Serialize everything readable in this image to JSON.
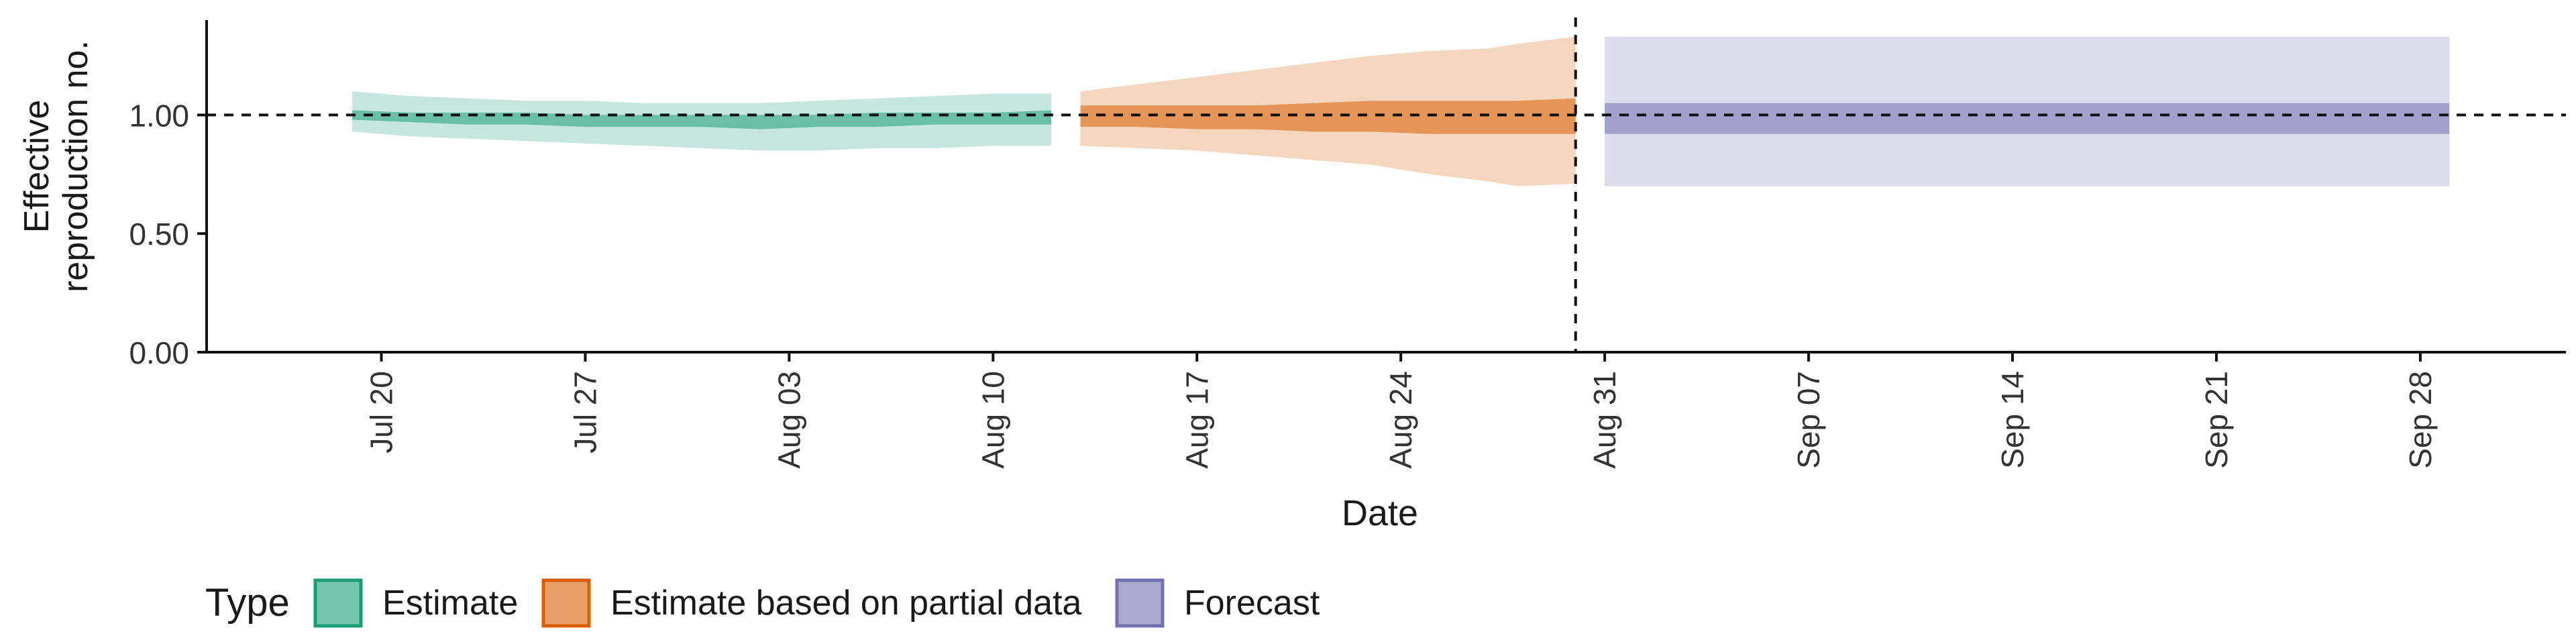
{
  "chart_data": {
    "type": "area",
    "title": "",
    "xlabel": "Date",
    "ylabel_lines": [
      "Effective",
      "reproduction no."
    ],
    "ylim": [
      0,
      1.4
    ],
    "y_ticks": [
      0.0,
      0.5,
      1.0
    ],
    "y_tick_labels": [
      "0.00",
      "0.50",
      "1.00"
    ],
    "x_range": [
      "2020-07-14",
      "2020-10-03"
    ],
    "x_ticks": [
      "2020-07-20",
      "2020-07-27",
      "2020-08-03",
      "2020-08-10",
      "2020-08-17",
      "2020-08-24",
      "2020-08-31",
      "2020-09-07",
      "2020-09-14",
      "2020-09-21",
      "2020-09-28"
    ],
    "x_tick_labels": [
      "Jul 20",
      "Jul 27",
      "Aug 03",
      "Aug 10",
      "Aug 17",
      "Aug 24",
      "Aug 31",
      "Sep 07",
      "Sep 14",
      "Sep 21",
      "Sep 28"
    ],
    "reference_hline": 1.0,
    "reference_vline": "2020-08-30",
    "grid": false,
    "legend_position": "bottom-left",
    "legend_title": "Type",
    "series": [
      {
        "name": "Estimate",
        "color": "#1B9E77",
        "dates": [
          "2020-07-19",
          "2020-07-21",
          "2020-07-23",
          "2020-07-25",
          "2020-07-27",
          "2020-07-29",
          "2020-07-31",
          "2020-08-02",
          "2020-08-04",
          "2020-08-06",
          "2020-08-08",
          "2020-08-10",
          "2020-08-12"
        ],
        "lower_90": [
          0.93,
          0.91,
          0.9,
          0.89,
          0.88,
          0.87,
          0.86,
          0.85,
          0.85,
          0.86,
          0.86,
          0.87,
          0.87
        ],
        "upper_90": [
          1.1,
          1.08,
          1.07,
          1.06,
          1.06,
          1.05,
          1.05,
          1.05,
          1.06,
          1.07,
          1.08,
          1.09,
          1.09
        ],
        "lower_50": [
          0.98,
          0.97,
          0.96,
          0.96,
          0.95,
          0.95,
          0.95,
          0.94,
          0.95,
          0.95,
          0.96,
          0.96,
          0.96
        ],
        "upper_50": [
          1.02,
          1.01,
          1.01,
          1.01,
          1.0,
          1.0,
          1.0,
          1.0,
          1.0,
          1.01,
          1.01,
          1.01,
          1.02
        ]
      },
      {
        "name": "Estimate based on partial data",
        "color": "#D95F02",
        "dates": [
          "2020-08-13",
          "2020-08-15",
          "2020-08-17",
          "2020-08-19",
          "2020-08-21",
          "2020-08-23",
          "2020-08-25",
          "2020-08-27",
          "2020-08-28",
          "2020-08-30"
        ],
        "lower_90": [
          0.87,
          0.86,
          0.85,
          0.83,
          0.81,
          0.79,
          0.75,
          0.72,
          0.7,
          0.71
        ],
        "upper_90": [
          1.1,
          1.13,
          1.16,
          1.19,
          1.22,
          1.25,
          1.27,
          1.28,
          1.3,
          1.33
        ],
        "lower_50": [
          0.95,
          0.95,
          0.94,
          0.94,
          0.93,
          0.93,
          0.92,
          0.92,
          0.92,
          0.92
        ],
        "upper_50": [
          1.04,
          1.04,
          1.04,
          1.04,
          1.05,
          1.06,
          1.06,
          1.06,
          1.06,
          1.07
        ]
      },
      {
        "name": "Forecast",
        "color": "#7570B3",
        "dates": [
          "2020-08-31",
          "2020-09-29"
        ],
        "lower_90": [
          0.7,
          0.7
        ],
        "upper_90": [
          1.33,
          1.33
        ],
        "lower_50": [
          0.92,
          0.92
        ],
        "upper_50": [
          1.05,
          1.05
        ]
      }
    ]
  }
}
